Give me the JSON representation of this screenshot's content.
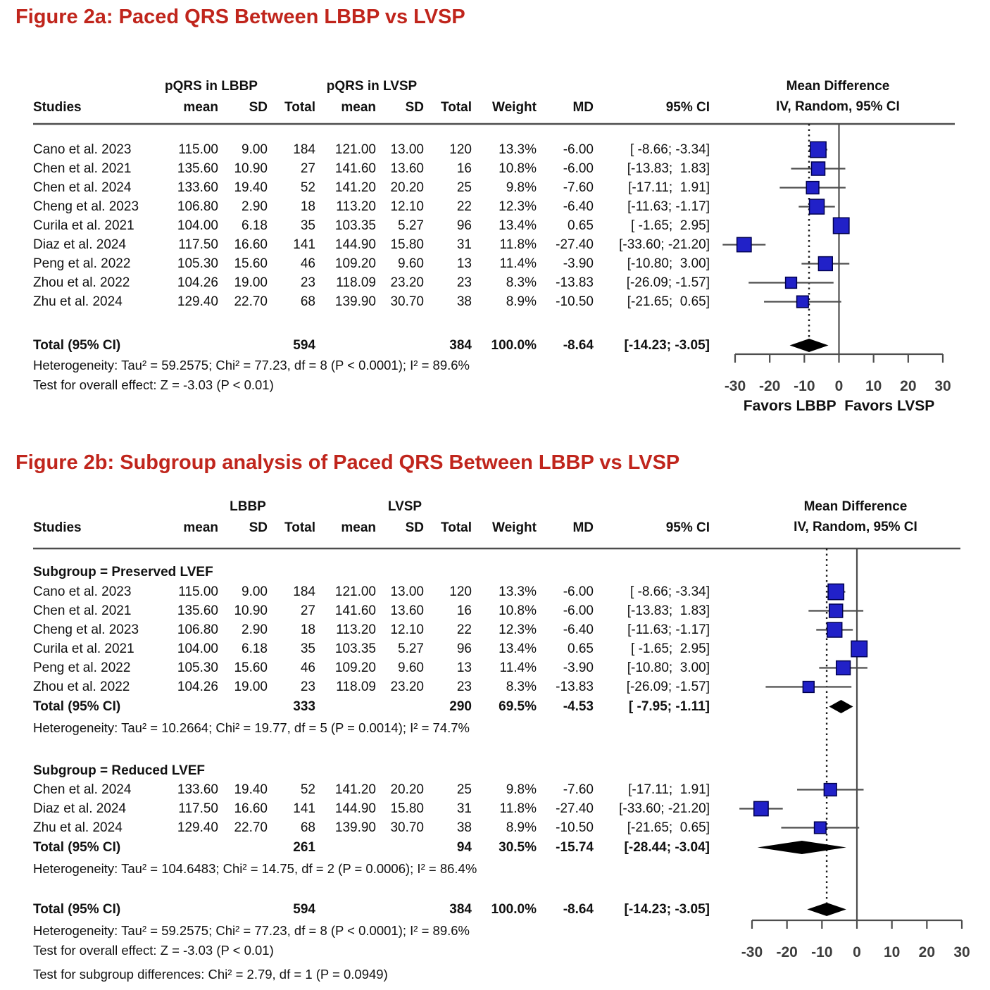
{
  "colors": {
    "title_red": "#c0251c",
    "marker_fill": "#2121c8",
    "marker_border": "#00004e",
    "frame_line": "#4d4d4d",
    "diamond_black": "#000000",
    "text": "#111111",
    "axis_text": "#3d3d3d"
  },
  "chart_data": [
    {
      "type": "forest",
      "title": "Figure 2a: Paced QRS Between LBBP vs LVSP",
      "columns": [
        "Studies",
        "mean",
        "SD",
        "Total",
        "mean",
        "SD",
        "Total",
        "Weight",
        "MD",
        "95% CI"
      ],
      "group_headers": [
        "pQRS in LBBP",
        "pQRS in LVSP"
      ],
      "effect_header": [
        "Mean Difference",
        "IV, Random, 95% CI"
      ],
      "studies": [
        {
          "name": "Cano et al. 2023",
          "mean1": 115.0,
          "sd1": 9.0,
          "n1": 184,
          "mean2": 121.0,
          "sd2": 13.0,
          "n2": 120,
          "weight_pct": 13.3,
          "md": -6.0,
          "ci_low": -8.66,
          "ci_high": -3.34
        },
        {
          "name": "Chen et al. 2021",
          "mean1": 135.6,
          "sd1": 10.9,
          "n1": 27,
          "mean2": 141.6,
          "sd2": 13.6,
          "n2": 16,
          "weight_pct": 10.8,
          "md": -6.0,
          "ci_low": -13.83,
          "ci_high": 1.83
        },
        {
          "name": "Chen et al. 2024",
          "mean1": 133.6,
          "sd1": 19.4,
          "n1": 52,
          "mean2": 141.2,
          "sd2": 20.2,
          "n2": 25,
          "weight_pct": 9.8,
          "md": -7.6,
          "ci_low": -17.11,
          "ci_high": 1.91
        },
        {
          "name": "Cheng et al. 2023",
          "mean1": 106.8,
          "sd1": 2.9,
          "n1": 18,
          "mean2": 113.2,
          "sd2": 12.1,
          "n2": 22,
          "weight_pct": 12.3,
          "md": -6.4,
          "ci_low": -11.63,
          "ci_high": -1.17
        },
        {
          "name": "Curila et al. 2021",
          "mean1": 104.0,
          "sd1": 6.18,
          "n1": 35,
          "mean2": 103.35,
          "sd2": 5.27,
          "n2": 96,
          "weight_pct": 13.4,
          "md": 0.65,
          "ci_low": -1.65,
          "ci_high": 2.95
        },
        {
          "name": "Diaz et al. 2024",
          "mean1": 117.5,
          "sd1": 16.6,
          "n1": 141,
          "mean2": 144.9,
          "sd2": 15.8,
          "n2": 31,
          "weight_pct": 11.8,
          "md": -27.4,
          "ci_low": -33.6,
          "ci_high": -21.2
        },
        {
          "name": "Peng et al. 2022",
          "mean1": 105.3,
          "sd1": 15.6,
          "n1": 46,
          "mean2": 109.2,
          "sd2": 9.6,
          "n2": 13,
          "weight_pct": 11.4,
          "md": -3.9,
          "ci_low": -10.8,
          "ci_high": 3.0
        },
        {
          "name": "Zhou et al. 2022",
          "mean1": 104.26,
          "sd1": 19.0,
          "n1": 23,
          "mean2": 118.09,
          "sd2": 23.2,
          "n2": 23,
          "weight_pct": 8.3,
          "md": -13.83,
          "ci_low": -26.09,
          "ci_high": -1.57
        },
        {
          "name": "Zhu et al. 2024",
          "mean1": 129.4,
          "sd1": 22.7,
          "n1": 68,
          "mean2": 139.9,
          "sd2": 30.7,
          "n2": 38,
          "weight_pct": 8.9,
          "md": -10.5,
          "ci_low": -21.65,
          "ci_high": 0.65
        }
      ],
      "total": {
        "label": "Total (95% CI)",
        "n1": 594,
        "n2": 384,
        "weight_pct": 100.0,
        "md": -8.64,
        "ci_low": -14.23,
        "ci_high": -3.05
      },
      "heterogeneity": "Heterogeneity: Tau² = 59.2575; Chi² = 77.23, df = 8 (P < 0.0001); I² = 89.6%",
      "overall_effect_test": "Test for overall effect: Z = -3.03 (P < 0.01)",
      "x_ticks": [
        -30,
        -20,
        -10,
        0,
        10,
        20,
        30
      ],
      "xlim": [
        -30,
        30
      ],
      "favors_left": "Favors LBBP",
      "favors_right": "Favors LVSP"
    },
    {
      "type": "forest",
      "title": "Figure 2b: Subgroup analysis of Paced QRS Between LBBP vs LVSP",
      "columns": [
        "Studies",
        "mean",
        "SD",
        "Total",
        "mean",
        "SD",
        "Total",
        "Weight",
        "MD",
        "95% CI"
      ],
      "group_headers": [
        "LBBP",
        "LVSP"
      ],
      "effect_header": [
        "Mean Difference",
        "IV, Random, 95% CI"
      ],
      "subgroups": [
        {
          "label": "Subgroup = Preserved LVEF",
          "studies": [
            {
              "name": "Cano et al. 2023",
              "mean1": 115.0,
              "sd1": 9.0,
              "n1": 184,
              "mean2": 121.0,
              "sd2": 13.0,
              "n2": 120,
              "weight_pct": 13.3,
              "md": -6.0,
              "ci_low": -8.66,
              "ci_high": -3.34
            },
            {
              "name": "Chen et al. 2021",
              "mean1": 135.6,
              "sd1": 10.9,
              "n1": 27,
              "mean2": 141.6,
              "sd2": 13.6,
              "n2": 16,
              "weight_pct": 10.8,
              "md": -6.0,
              "ci_low": -13.83,
              "ci_high": 1.83
            },
            {
              "name": "Cheng et al. 2023",
              "mean1": 106.8,
              "sd1": 2.9,
              "n1": 18,
              "mean2": 113.2,
              "sd2": 12.1,
              "n2": 22,
              "weight_pct": 12.3,
              "md": -6.4,
              "ci_low": -11.63,
              "ci_high": -1.17
            },
            {
              "name": "Curila et al. 2021",
              "mean1": 104.0,
              "sd1": 6.18,
              "n1": 35,
              "mean2": 103.35,
              "sd2": 5.27,
              "n2": 96,
              "weight_pct": 13.4,
              "md": 0.65,
              "ci_low": -1.65,
              "ci_high": 2.95
            },
            {
              "name": "Peng et al. 2022",
              "mean1": 105.3,
              "sd1": 15.6,
              "n1": 46,
              "mean2": 109.2,
              "sd2": 9.6,
              "n2": 13,
              "weight_pct": 11.4,
              "md": -3.9,
              "ci_low": -10.8,
              "ci_high": 3.0
            },
            {
              "name": "Zhou et al. 2022",
              "mean1": 104.26,
              "sd1": 19.0,
              "n1": 23,
              "mean2": 118.09,
              "sd2": 23.2,
              "n2": 23,
              "weight_pct": 8.3,
              "md": -13.83,
              "ci_low": -26.09,
              "ci_high": -1.57
            }
          ],
          "total": {
            "label": "Total (95% CI)",
            "n1": 333,
            "n2": 290,
            "weight_pct": 69.5,
            "md": -4.53,
            "ci_low": -7.95,
            "ci_high": -1.11
          },
          "heterogeneity": "Heterogeneity: Tau² = 10.2664; Chi² = 19.77, df = 5 (P = 0.0014); I² = 74.7%"
        },
        {
          "label": "Subgroup = Reduced LVEF",
          "studies": [
            {
              "name": "Chen et al. 2024",
              "mean1": 133.6,
              "sd1": 19.4,
              "n1": 52,
              "mean2": 141.2,
              "sd2": 20.2,
              "n2": 25,
              "weight_pct": 9.8,
              "md": -7.6,
              "ci_low": -17.11,
              "ci_high": 1.91
            },
            {
              "name": "Diaz et al. 2024",
              "mean1": 117.5,
              "sd1": 16.6,
              "n1": 141,
              "mean2": 144.9,
              "sd2": 15.8,
              "n2": 31,
              "weight_pct": 11.8,
              "md": -27.4,
              "ci_low": -33.6,
              "ci_high": -21.2
            },
            {
              "name": "Zhu et al. 2024",
              "mean1": 129.4,
              "sd1": 22.7,
              "n1": 68,
              "mean2": 139.9,
              "sd2": 30.7,
              "n2": 38,
              "weight_pct": 8.9,
              "md": -10.5,
              "ci_low": -21.65,
              "ci_high": 0.65
            }
          ],
          "total": {
            "label": "Total (95% CI)",
            "n1": 261,
            "n2": 94,
            "weight_pct": 30.5,
            "md": -15.74,
            "ci_low": -28.44,
            "ci_high": -3.04
          },
          "heterogeneity": "Heterogeneity: Tau² = 104.6483; Chi² = 14.75, df = 2 (P = 0.0006); I² = 86.4%"
        }
      ],
      "total": {
        "label": "Total (95% CI)",
        "n1": 594,
        "n2": 384,
        "weight_pct": 100.0,
        "md": -8.64,
        "ci_low": -14.23,
        "ci_high": -3.05
      },
      "heterogeneity": "Heterogeneity: Tau² = 59.2575; Chi² = 77.23, df = 8 (P < 0.0001); I² = 89.6%",
      "overall_effect_test": "Test for overall effect: Z = -3.03 (P < 0.01)",
      "subgroup_difference_test": "Test for subgroup differences: Chi² = 2.79, df = 1 (P = 0.0949)",
      "x_ticks": [
        -30,
        -20,
        -10,
        0,
        10,
        20,
        30
      ],
      "xlim": [
        -30,
        30
      ]
    }
  ]
}
